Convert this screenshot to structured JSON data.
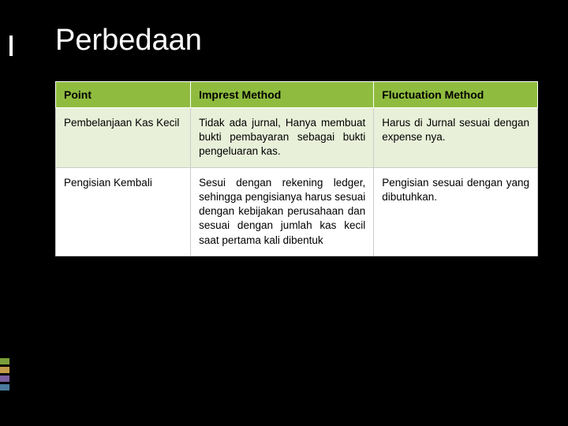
{
  "title": "Perbedaan",
  "table": {
    "headers": {
      "col1": "Point",
      "col2": "Imprest Method",
      "col3": "Fluctuation Method"
    },
    "rows": [
      {
        "point": "Pembelanjaan Kas Kecil",
        "imprest": "Tidak ada jurnal, Hanya membuat bukti pembayaran sebagai bukti pengeluaran kas.",
        "fluctuation": "Harus di Jurnal sesuai dengan expense nya."
      },
      {
        "point": "Pengisian Kembali",
        "imprest": "Sesui dengan rekening ledger, sehingga pengisianya harus sesuai dengan kebijakan perusahaan dan sesuai dengan jumlah kas kecil saat pertama kali dibentuk",
        "fluctuation": "Pengisian sesuai dengan yang dibutuhkan."
      }
    ]
  },
  "colors": {
    "header_bg": "#8fbc3f",
    "row_even_bg": "#e9f0d9",
    "row_odd_bg": "#ffffff",
    "slide_bg": "#000000",
    "title_color": "#ffffff",
    "accent1": "#7a9e3a",
    "accent2": "#c39b4a",
    "accent3": "#7a5fa0",
    "accent4": "#4a7a9e"
  }
}
